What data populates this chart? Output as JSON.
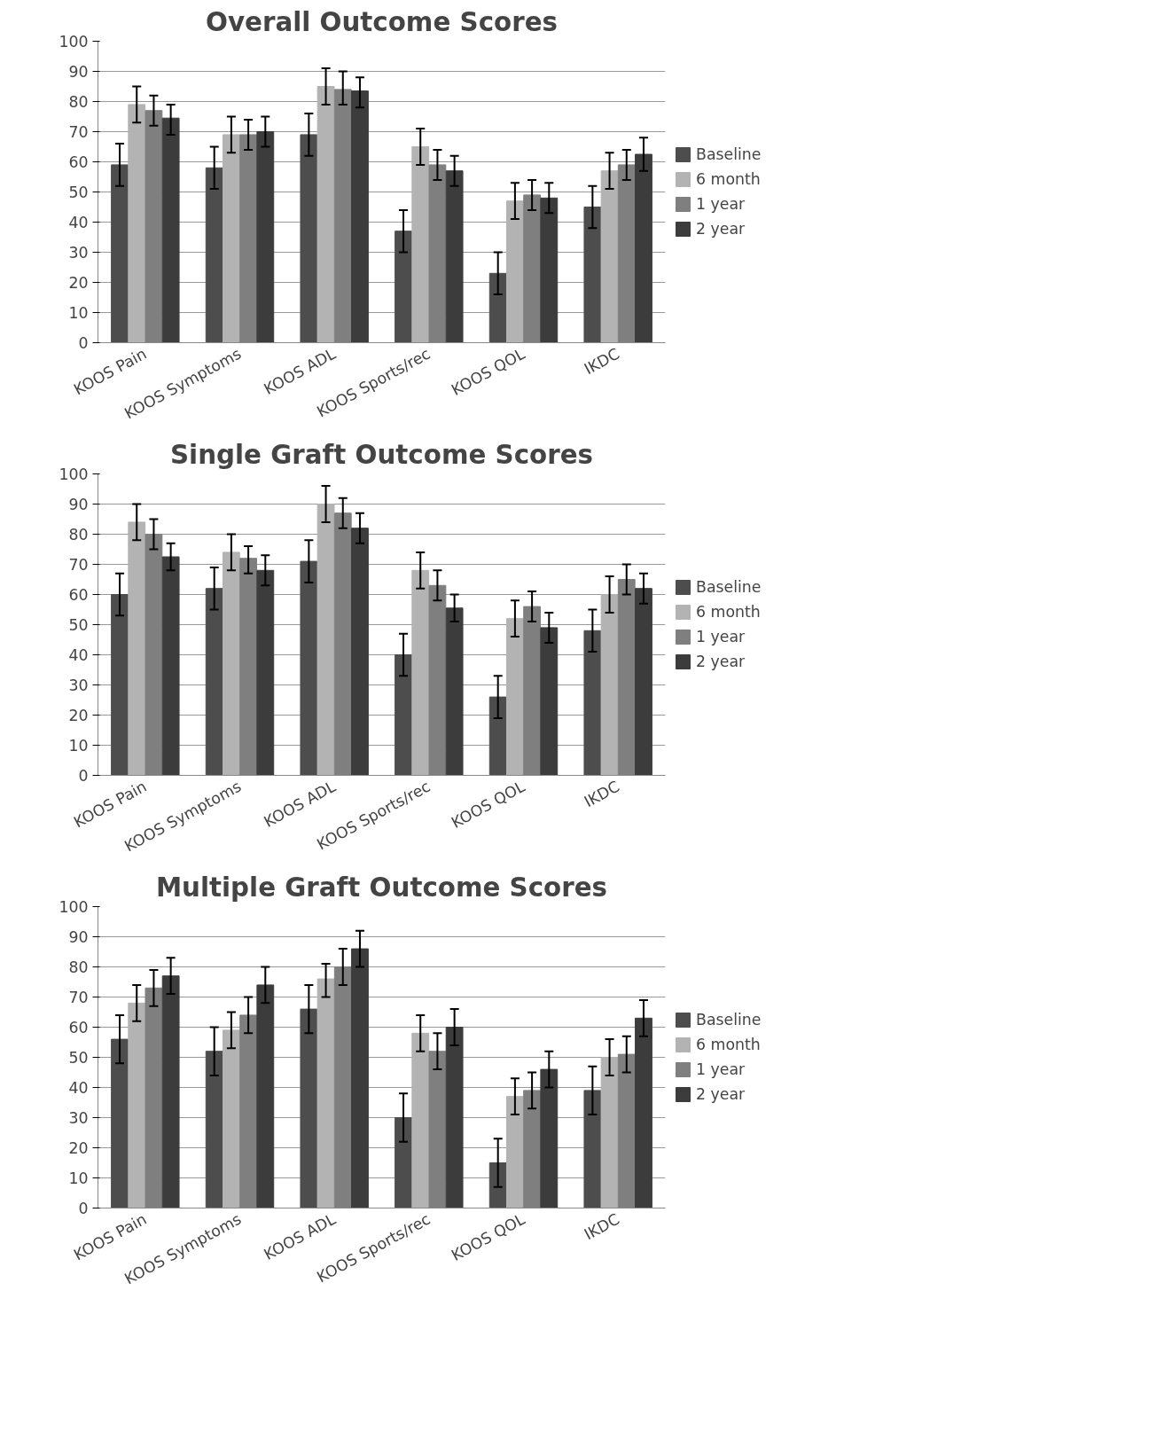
{
  "chart_data": [
    {
      "type": "bar",
      "title": "Overall Outcome Scores",
      "categories": [
        "KOOS Pain",
        "KOOS Symptoms",
        "KOOS ADL",
        "KOOS Sports/rec",
        "KOOS QOL",
        "IKDC"
      ],
      "ylim": [
        0,
        100
      ],
      "yticks": [
        0,
        10,
        20,
        30,
        40,
        50,
        60,
        70,
        80,
        90,
        100
      ],
      "grid": "y",
      "legend": "right",
      "series": [
        {
          "name": "Baseline",
          "color": "#4d4d4d",
          "values": [
            59,
            58,
            69,
            37,
            23,
            45
          ],
          "errors": [
            [
              52,
              66
            ],
            [
              51,
              65
            ],
            [
              62,
              76
            ],
            [
              30,
              44
            ],
            [
              16,
              30
            ],
            [
              38,
              52
            ]
          ]
        },
        {
          "name": "6 month",
          "color": "#b3b3b3",
          "values": [
            79,
            69,
            85,
            65,
            47,
            57
          ],
          "errors": [
            [
              73,
              85
            ],
            [
              63,
              75
            ],
            [
              79,
              91
            ],
            [
              59,
              71
            ],
            [
              41,
              53
            ],
            [
              51,
              63
            ]
          ]
        },
        {
          "name": "1 year",
          "color": "#7f7f7f",
          "values": [
            77,
            69,
            84,
            59,
            49,
            59
          ],
          "errors": [
            [
              72,
              82
            ],
            [
              64,
              74
            ],
            [
              79,
              90
            ],
            [
              54,
              64
            ],
            [
              44,
              54
            ],
            [
              54,
              64
            ]
          ]
        },
        {
          "name": "2 year",
          "color": "#3c3c3c",
          "values": [
            74.5,
            70,
            83.5,
            57,
            48,
            62.5
          ],
          "errors": [
            [
              69,
              79
            ],
            [
              65,
              75
            ],
            [
              78,
              88
            ],
            [
              52,
              62
            ],
            [
              43,
              53
            ],
            [
              57,
              68
            ]
          ]
        }
      ]
    },
    {
      "type": "bar",
      "title": "Single Graft Outcome Scores",
      "categories": [
        "KOOS Pain",
        "KOOS Symptoms",
        "KOOS ADL",
        "KOOS Sports/rec",
        "KOOS QOL",
        "IKDC"
      ],
      "ylim": [
        0,
        100
      ],
      "yticks": [
        0,
        10,
        20,
        30,
        40,
        50,
        60,
        70,
        80,
        90,
        100
      ],
      "grid": "y",
      "legend": "right",
      "series": [
        {
          "name": "Baseline",
          "color": "#4d4d4d",
          "values": [
            60,
            62,
            71,
            40,
            26,
            48
          ],
          "errors": [
            [
              53,
              67
            ],
            [
              55,
              69
            ],
            [
              64,
              78
            ],
            [
              33,
              47
            ],
            [
              19,
              33
            ],
            [
              41,
              55
            ]
          ]
        },
        {
          "name": "6 month",
          "color": "#b3b3b3",
          "values": [
            84,
            74,
            90,
            68,
            52,
            60
          ],
          "errors": [
            [
              78,
              90
            ],
            [
              68,
              80
            ],
            [
              84,
              96
            ],
            [
              62,
              74
            ],
            [
              46,
              58
            ],
            [
              54,
              66
            ]
          ]
        },
        {
          "name": "1 year",
          "color": "#7f7f7f",
          "values": [
            80,
            72,
            87,
            63,
            56,
            65
          ],
          "errors": [
            [
              75,
              85
            ],
            [
              67,
              76
            ],
            [
              82,
              92
            ],
            [
              58,
              68
            ],
            [
              51,
              61
            ],
            [
              60,
              70
            ]
          ]
        },
        {
          "name": "2 year",
          "color": "#3c3c3c",
          "values": [
            72.5,
            68,
            82,
            55.5,
            49,
            62
          ],
          "errors": [
            [
              68,
              77
            ],
            [
              63,
              73
            ],
            [
              77,
              87
            ],
            [
              51,
              60
            ],
            [
              44,
              54
            ],
            [
              57,
              67
            ]
          ]
        }
      ]
    },
    {
      "type": "bar",
      "title": "Multiple Graft Outcome Scores",
      "categories": [
        "KOOS Pain",
        "KOOS Symptoms",
        "KOOS ADL",
        "KOOS Sports/rec",
        "KOOS QOL",
        "IKDC"
      ],
      "ylim": [
        0,
        100
      ],
      "yticks": [
        0,
        10,
        20,
        30,
        40,
        50,
        60,
        70,
        80,
        90,
        100
      ],
      "grid": "y",
      "legend": "right",
      "series": [
        {
          "name": "Baseline",
          "color": "#4d4d4d",
          "values": [
            56,
            52,
            66,
            30,
            15,
            39
          ],
          "errors": [
            [
              48,
              64
            ],
            [
              44,
              60
            ],
            [
              58,
              74
            ],
            [
              22,
              38
            ],
            [
              7,
              23
            ],
            [
              31,
              47
            ]
          ]
        },
        {
          "name": "6 month",
          "color": "#b3b3b3",
          "values": [
            68,
            59,
            76,
            58,
            37,
            50
          ],
          "errors": [
            [
              62,
              74
            ],
            [
              53,
              65
            ],
            [
              70,
              81
            ],
            [
              52,
              64
            ],
            [
              31,
              43
            ],
            [
              44,
              56
            ]
          ]
        },
        {
          "name": "1 year",
          "color": "#7f7f7f",
          "values": [
            73,
            64,
            80,
            52,
            39,
            51
          ],
          "errors": [
            [
              67,
              79
            ],
            [
              58,
              70
            ],
            [
              74,
              86
            ],
            [
              46,
              58
            ],
            [
              33,
              45
            ],
            [
              45,
              57
            ]
          ]
        },
        {
          "name": "2 year",
          "color": "#3c3c3c",
          "values": [
            77,
            74,
            86,
            60,
            46,
            63
          ],
          "errors": [
            [
              71,
              83
            ],
            [
              68,
              80
            ],
            [
              80,
              92
            ],
            [
              54,
              66
            ],
            [
              40,
              52
            ],
            [
              57,
              69
            ]
          ]
        }
      ]
    }
  ]
}
